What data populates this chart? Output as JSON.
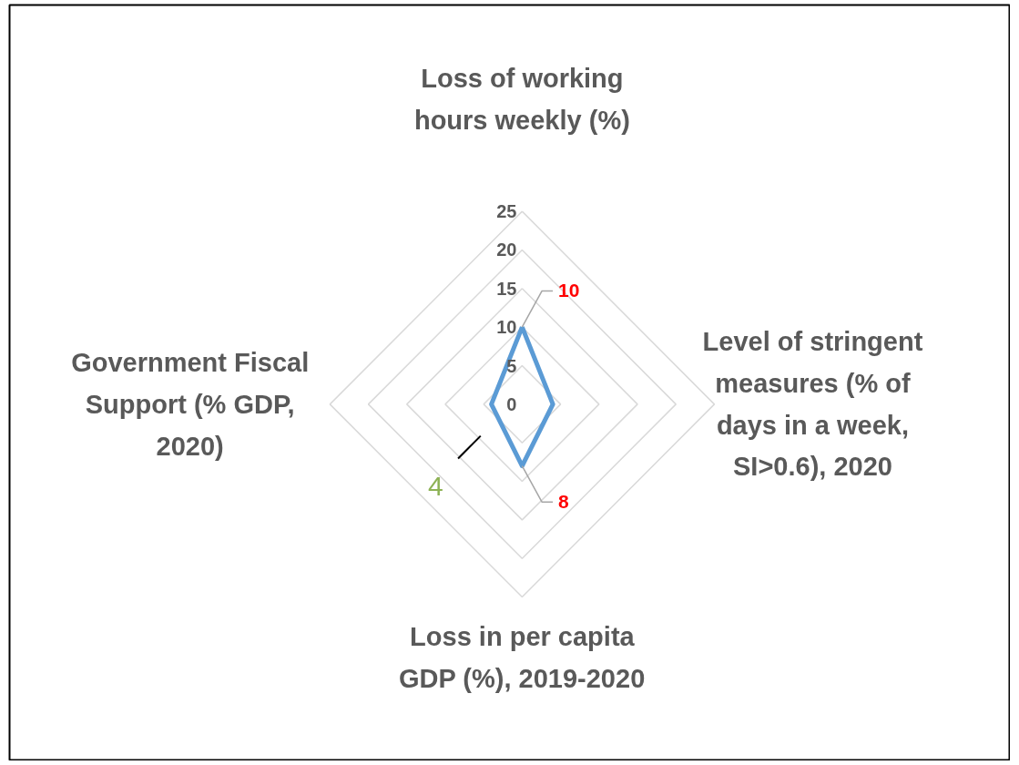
{
  "chart_data": {
    "type": "radar",
    "categories": [
      "Loss of working hours weekly (%)",
      "Level of stringent measures (% of days in a week, SI>0.6), 2020",
      "Loss in per capita GDP (%), 2019-2020",
      "Government Fiscal Support (% GDP, 2020)"
    ],
    "series": [
      {
        "color": "#5b9bd5",
        "values": [
          10,
          4,
          8,
          4
        ],
        "value_labels": [
          "10",
          null,
          "8",
          null
        ]
      }
    ],
    "ylim": [
      0,
      25
    ],
    "yticks": [
      0,
      5,
      10,
      15,
      20,
      25
    ],
    "grid": true,
    "annotations": [
      "4"
    ]
  }
}
